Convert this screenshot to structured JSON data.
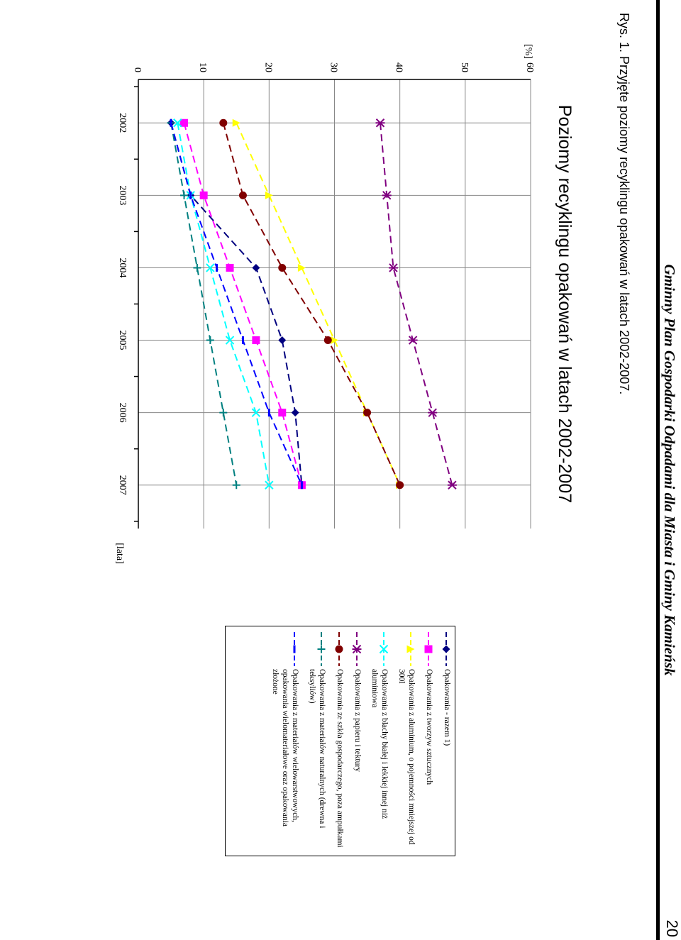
{
  "header": {
    "title": "Gminny Plan Gospodarki Odpadami dla Miasta i Gminy Kamieńsk",
    "page_number": "20"
  },
  "figure": {
    "caption": "Rys. 1. Przyjęte poziomy recyklingu opakowań w latach 2002-2007."
  },
  "chart_data": {
    "type": "line",
    "title": "Poziomy recyklingu opakowań w latach 2002-2007",
    "ylabel": "[%]",
    "xlabel": "[lata]",
    "categories": [
      "2002",
      "2003",
      "2004",
      "2005",
      "2006",
      "2007"
    ],
    "ylim": [
      0,
      60
    ],
    "yticks": [
      "0",
      "10",
      "20",
      "30",
      "40",
      "50",
      "60"
    ],
    "grid": true,
    "legend_position": "right",
    "series": [
      {
        "name": "Opakowania - razem 1)",
        "color": "#000080",
        "marker": "diamond",
        "values": [
          5,
          8,
          18,
          22,
          24,
          25
        ]
      },
      {
        "name": "Opakowania z tworzyw sztucznych",
        "color": "#ff00ff",
        "marker": "square",
        "values": [
          7,
          10,
          14,
          18,
          22,
          25
        ]
      },
      {
        "name": "Opakowania z aluminium, o pojemności mniejszej od 300l",
        "color": "#ffff00",
        "marker": "triangle",
        "values": [
          15,
          20,
          25,
          30,
          35,
          40
        ]
      },
      {
        "name": "Opakowania z blachy białej i lekkiej innej niż aluminiowa",
        "color": "#00ffff",
        "marker": "x",
        "values": [
          6,
          8,
          11,
          14,
          18,
          20
        ]
      },
      {
        "name": "Opakowania z papieru i tektury",
        "color": "#800080",
        "marker": "star",
        "values": [
          37,
          38,
          39,
          42,
          45,
          48
        ]
      },
      {
        "name": "Opakowania ze szkła gospodarczego, poza ampułkami",
        "color": "#800000",
        "marker": "circle",
        "values": [
          13,
          16,
          22,
          29,
          35,
          40
        ]
      },
      {
        "name": "Opakowania z materiałów naturalnych (drewna i teksyliów)",
        "color": "#008080",
        "marker": "plus",
        "values": [
          5,
          7,
          9,
          11,
          13,
          15
        ]
      },
      {
        "name": "Opakowania z materiałów wielowarstwowych, opakowania wielomateriałowe oraz opakowania złożone",
        "color": "#0000ff",
        "marker": "dash",
        "values": [
          5,
          8,
          12,
          16,
          20,
          25
        ]
      }
    ]
  }
}
